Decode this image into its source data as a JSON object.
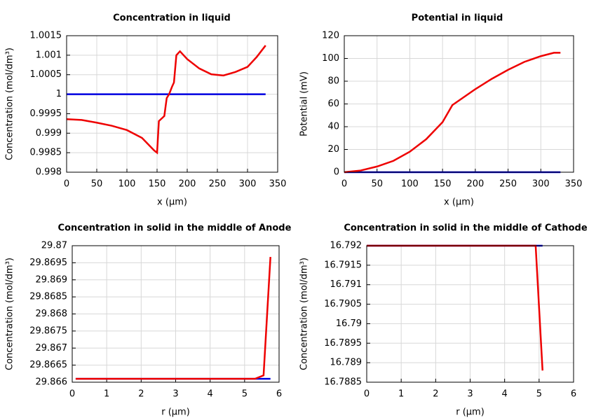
{
  "chart_data": [
    {
      "type": "line",
      "title": "Concentration in liquid",
      "xlabel": "x (µm)",
      "ylabel": "Concentration (mol/dm³)",
      "xlim": [
        0,
        350
      ],
      "ylim": [
        0.998,
        1.0015
      ],
      "xticks": [
        0,
        50,
        100,
        150,
        200,
        250,
        300,
        350
      ],
      "yticks": [
        0.998,
        0.9985,
        0.999,
        0.9995,
        1,
        1.0005,
        1.001,
        1.0015
      ],
      "grid": true,
      "series": [
        {
          "color": "#0000e0",
          "x": [
            0,
            330
          ],
          "values": [
            1,
            1
          ]
        },
        {
          "color": "#ee0000",
          "x": [
            0,
            25,
            50,
            75,
            100,
            125,
            145,
            150,
            153,
            162,
            166,
            170,
            175,
            178,
            182,
            188,
            200,
            220,
            240,
            260,
            280,
            300,
            315,
            330
          ],
          "values": [
            0.99936,
            0.99934,
            0.99927,
            0.99919,
            0.99908,
            0.99888,
            0.99856,
            0.9985,
            0.99931,
            0.99944,
            0.9999,
            1.0,
            1.0002,
            1.0003,
            1.001,
            1.0011,
            1.0009,
            1.00066,
            1.00051,
            1.00048,
            1.00057,
            1.0007,
            1.00095,
            1.00125
          ]
        }
      ]
    },
    {
      "type": "line",
      "title": "Potential in liquid",
      "xlabel": "x (µm)",
      "ylabel": "Potential (mV)",
      "xlim": [
        0,
        350
      ],
      "ylim": [
        0,
        120
      ],
      "xticks": [
        0,
        50,
        100,
        150,
        200,
        250,
        300,
        350
      ],
      "yticks": [
        0,
        20,
        40,
        60,
        80,
        100,
        120
      ],
      "grid": true,
      "series": [
        {
          "color": "#0000e0",
          "x": [
            0,
            330
          ],
          "values": [
            0,
            0
          ]
        },
        {
          "color": "#ee0000",
          "x": [
            0,
            25,
            50,
            75,
            100,
            125,
            150,
            165,
            180,
            200,
            225,
            250,
            275,
            300,
            320,
            330
          ],
          "values": [
            0,
            1.5,
            5,
            10,
            18,
            29,
            44,
            59,
            65,
            73,
            82,
            90,
            97,
            102,
            105,
            105
          ]
        }
      ]
    },
    {
      "type": "line",
      "title": "Concentration in solid in the middle of Anode",
      "xlabel": "r (µm)",
      "ylabel": "Concentration (mol/dm³)",
      "xlim": [
        0,
        6
      ],
      "ylim": [
        29.866,
        29.87
      ],
      "xticks": [
        0,
        1,
        2,
        3,
        4,
        5,
        6
      ],
      "yticks": [
        29.866,
        29.8665,
        29.867,
        29.8675,
        29.868,
        29.8685,
        29.869,
        29.8695,
        29.87
      ],
      "grid": true,
      "series": [
        {
          "color": "#0000e0",
          "x": [
            0.1,
            5.75
          ],
          "values": [
            29.8661,
            29.8661
          ]
        },
        {
          "color": "#ee0000",
          "x": [
            0.1,
            5.3,
            5.55,
            5.75
          ],
          "values": [
            29.8661,
            29.8661,
            29.8662,
            29.86967
          ]
        }
      ]
    },
    {
      "type": "line",
      "title": "Concentration in solid in the middle of Cathode",
      "xlabel": "r (µm)",
      "ylabel": "Concentration (mol/dm³)",
      "xlim": [
        0,
        6
      ],
      "ylim": [
        16.7885,
        16.792
      ],
      "xticks": [
        0,
        1,
        2,
        3,
        4,
        5,
        6
      ],
      "yticks": [
        16.7885,
        16.789,
        16.7895,
        16.79,
        16.7905,
        16.791,
        16.7915,
        16.792
      ],
      "grid": true,
      "series": [
        {
          "color": "#0000e0",
          "x": [
            0,
            5.1
          ],
          "values": [
            16.792,
            16.792
          ]
        },
        {
          "color": "#ee0000",
          "x": [
            0,
            4.9,
            5.1
          ],
          "values": [
            16.792,
            16.792,
            16.7888
          ]
        }
      ]
    }
  ]
}
